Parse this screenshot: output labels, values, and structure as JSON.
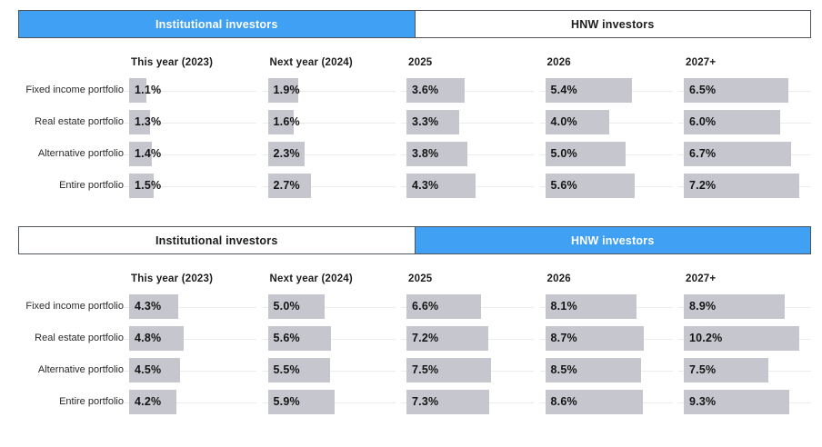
{
  "colors": {
    "accent": "#3fa0f4",
    "bar": "#c6c7ce",
    "track": "#ececec",
    "tab_border": "#4f545a",
    "active_tab_text": "#ffffff"
  },
  "tabs": [
    "Institutional investors",
    "HNW investors"
  ],
  "panels": [
    {
      "active_tab": 0,
      "columns": [
        "This year (2023)",
        "Next year (2024)",
        "2025",
        "2026",
        "2027+"
      ],
      "rows": [
        {
          "label": "Fixed income portfolio",
          "display": [
            "1.1%",
            "1.9%",
            "3.6%",
            "5.4%",
            "6.5%"
          ]
        },
        {
          "label": "Real estate portfolio",
          "display": [
            "1.3%",
            "1.6%",
            "3.3%",
            "4.0%",
            "6.0%"
          ]
        },
        {
          "label": "Alternative portfolio",
          "display": [
            "1.4%",
            "2.3%",
            "3.8%",
            "5.0%",
            "6.7%"
          ]
        },
        {
          "label": "Entire portfolio",
          "display": [
            "1.5%",
            "2.7%",
            "4.3%",
            "5.6%",
            "7.2%"
          ]
        }
      ]
    },
    {
      "active_tab": 1,
      "columns": [
        "This year (2023)",
        "Next year (2024)",
        "2025",
        "2026",
        "2027+"
      ],
      "rows": [
        {
          "label": "Fixed income portfolio",
          "display": [
            "4.3%",
            "5.0%",
            "6.6%",
            "8.1%",
            "8.9%"
          ]
        },
        {
          "label": "Real estate portfolio",
          "display": [
            "4.8%",
            "5.6%",
            "7.2%",
            "8.7%",
            "10.2%"
          ]
        },
        {
          "label": "Alternative portfolio",
          "display": [
            "4.5%",
            "5.5%",
            "7.5%",
            "8.5%",
            "7.5%"
          ]
        },
        {
          "label": "Entire portfolio",
          "display": [
            "4.2%",
            "5.9%",
            "7.3%",
            "8.6%",
            "9.3%"
          ]
        }
      ]
    }
  ],
  "chart_data": [
    {
      "type": "bar",
      "orientation": "horizontal",
      "title": "Institutional investors",
      "categories": [
        "This year (2023)",
        "Next year (2024)",
        "2025",
        "2026",
        "2027+"
      ],
      "series": [
        {
          "name": "Fixed income portfolio",
          "values": [
            1.1,
            1.9,
            3.6,
            5.4,
            6.5
          ]
        },
        {
          "name": "Real estate portfolio",
          "values": [
            1.3,
            1.6,
            3.3,
            4.0,
            6.0
          ]
        },
        {
          "name": "Alternative portfolio",
          "values": [
            1.4,
            2.3,
            3.8,
            5.0,
            6.7
          ]
        },
        {
          "name": "Entire portfolio",
          "values": [
            1.5,
            2.7,
            4.3,
            5.6,
            7.2
          ]
        }
      ],
      "unit": "%",
      "value_labels": true,
      "legend": "none",
      "grid": "row-baseline"
    },
    {
      "type": "bar",
      "orientation": "horizontal",
      "title": "HNW investors",
      "categories": [
        "This year (2023)",
        "Next year (2024)",
        "2025",
        "2026",
        "2027+"
      ],
      "series": [
        {
          "name": "Fixed income portfolio",
          "values": [
            4.3,
            5.0,
            6.6,
            8.1,
            8.9
          ]
        },
        {
          "name": "Real estate portfolio",
          "values": [
            4.8,
            5.6,
            7.2,
            8.7,
            10.2
          ]
        },
        {
          "name": "Alternative portfolio",
          "values": [
            4.5,
            5.5,
            7.5,
            8.5,
            7.5
          ]
        },
        {
          "name": "Entire portfolio",
          "values": [
            4.2,
            5.9,
            7.3,
            8.6,
            9.3
          ]
        }
      ],
      "unit": "%",
      "value_labels": true,
      "legend": "none",
      "grid": "row-baseline"
    }
  ]
}
